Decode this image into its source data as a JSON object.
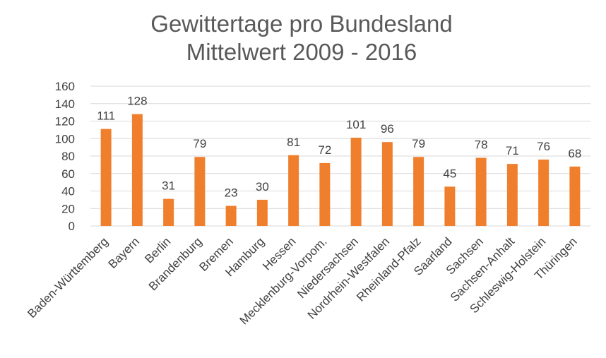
{
  "chart_data": {
    "type": "bar",
    "title": "Gewittertage pro Bundesland",
    "subtitle": "Mittelwert 2009 - 2016",
    "xlabel": "",
    "ylabel": "",
    "ylim": [
      0,
      160
    ],
    "yticks": [
      0,
      20,
      40,
      60,
      80,
      100,
      120,
      140,
      160
    ],
    "grid": true,
    "legend": "none",
    "color": "#f07f2d",
    "categories": [
      "Baden-Württemberg",
      "Bayern",
      "Berlin",
      "Brandenburg",
      "Bremen",
      "Hamburg",
      "Hessen",
      "Mecklenburg-Vorpom.",
      "Niedersachsen",
      "Nordrhein-Westfalen",
      "Rheinland-Pfalz",
      "Saarland",
      "Sachsen",
      "Sachsen-Anhalt",
      "Schleswig-Holstein",
      "Thüringen"
    ],
    "values": [
      111,
      128,
      31,
      79,
      23,
      30,
      81,
      72,
      101,
      96,
      79,
      45,
      78,
      71,
      76,
      68
    ],
    "data_labels": [
      111,
      128,
      31,
      79,
      23,
      30,
      81,
      72,
      101,
      96,
      79,
      45,
      78,
      71,
      76,
      68
    ]
  }
}
